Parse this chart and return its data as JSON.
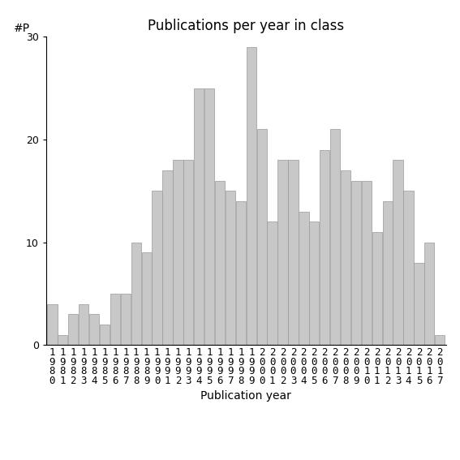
{
  "years": [
    "1980",
    "1981",
    "1982",
    "1983",
    "1984",
    "1985",
    "1986",
    "1987",
    "1988",
    "1989",
    "1990",
    "1991",
    "1992",
    "1993",
    "1994",
    "1995",
    "1996",
    "1997",
    "1998",
    "1999",
    "2000",
    "2001",
    "2002",
    "2003",
    "2004",
    "2005",
    "2006",
    "2007",
    "2008",
    "2009",
    "2010",
    "2011",
    "2012",
    "2013",
    "2014",
    "2015",
    "2016",
    "2017"
  ],
  "values": [
    4,
    1,
    3,
    4,
    3,
    2,
    5,
    5,
    10,
    9,
    15,
    17,
    18,
    18,
    25,
    25,
    16,
    15,
    14,
    29,
    21,
    12,
    18,
    18,
    13,
    12,
    19,
    21,
    17,
    16,
    16,
    11,
    14,
    18,
    15,
    8,
    10,
    1
  ],
  "bar_color": "#c8c8c8",
  "bar_edge_color": "#999999",
  "title": "Publications per year in class",
  "xlabel": "Publication year",
  "ylabel": "#P",
  "ylim": [
    0,
    30
  ],
  "yticks": [
    0,
    10,
    20,
    30
  ],
  "background_color": "#ffffff",
  "title_fontsize": 12,
  "label_fontsize": 10,
  "tick_fontsize": 9
}
